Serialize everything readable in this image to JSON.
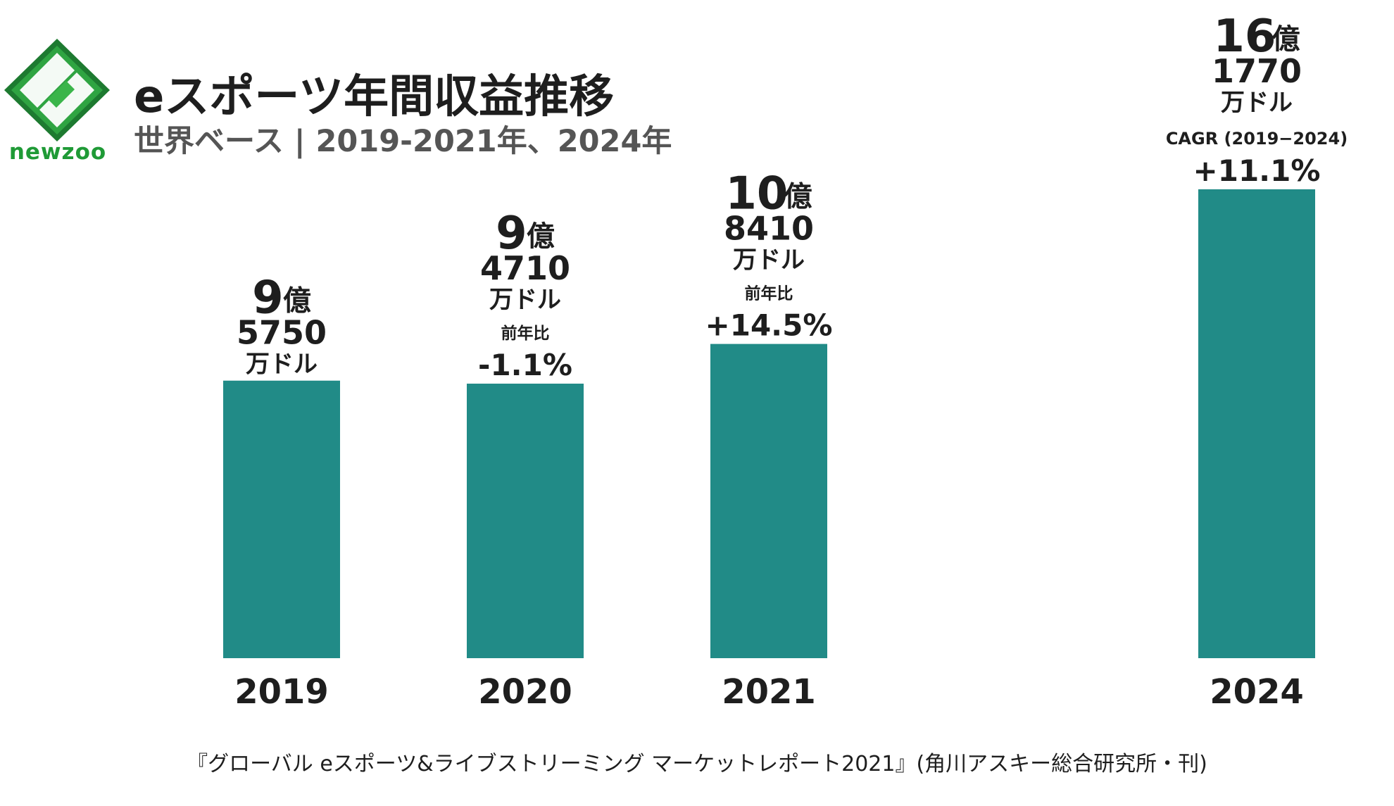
{
  "logo": {
    "icon": "newzoo-logo-icon",
    "text": "newzoo",
    "colors": {
      "dark": "#1d7a30",
      "light": "#3ab54a"
    }
  },
  "header": {
    "title": "eスポーツ年間収益推移",
    "subtitle": "世界ベース | 2019-2021年、2024年"
  },
  "source": "『グローバル eスポーツ&ライブストリーミング マーケットレポート2021』(角川アスキー総合研究所・刊)",
  "colors": {
    "bar": "#218b87",
    "text": "#1e1e1e"
  },
  "chart_data": {
    "type": "bar",
    "categories": [
      "2019",
      "2020",
      "2021",
      "2024"
    ],
    "values": [
      957.5,
      947.1,
      1084.1,
      1617.7
    ],
    "unit": "百万ドル",
    "ylim": [
      0,
      1700
    ],
    "grid": false,
    "bars": [
      {
        "year": "2019",
        "label_main": "9",
        "label_oku": "億",
        "label_man": "5750",
        "label_unit": "万ドル",
        "change_label": "",
        "change_value": ""
      },
      {
        "year": "2020",
        "label_main": "9",
        "label_oku": "億",
        "label_man": "4710",
        "label_unit": "万ドル",
        "change_label": "前年比",
        "change_value": "-1.1%"
      },
      {
        "year": "2021",
        "label_main": "10",
        "label_oku": "億",
        "label_man": "8410",
        "label_unit": "万ドル",
        "change_label": "前年比",
        "change_value": "+14.5%"
      },
      {
        "year": "2024",
        "label_main": "16",
        "label_oku": "億",
        "label_man": "1770",
        "label_unit": "万ドル",
        "change_label": "CAGR (2019−2024)",
        "change_value": "+11.1%"
      }
    ]
  }
}
